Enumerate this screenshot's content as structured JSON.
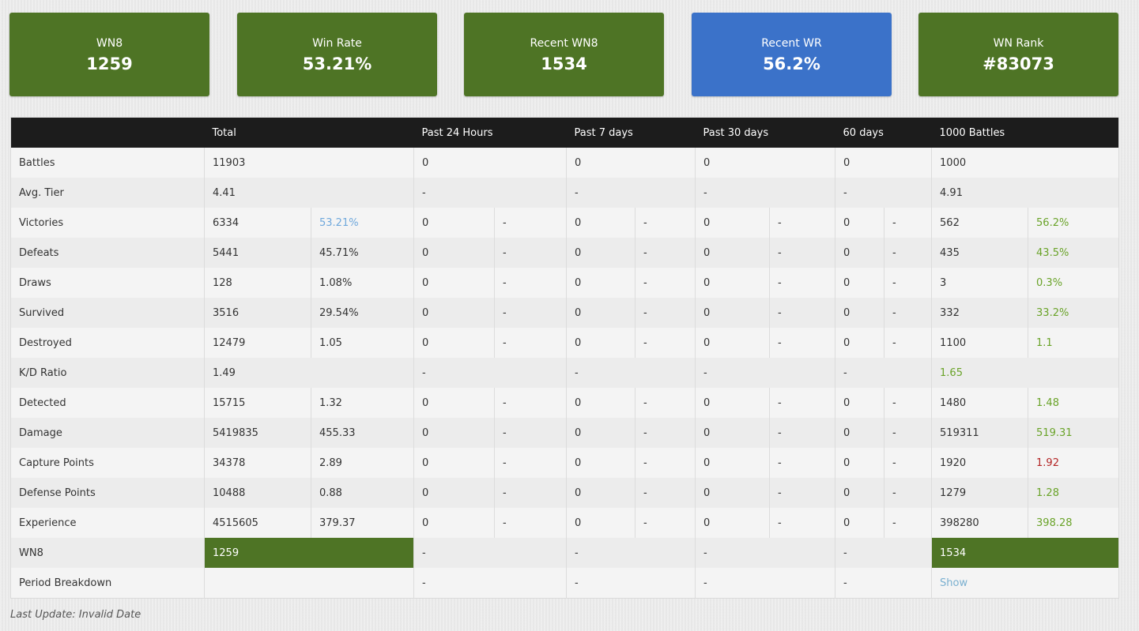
{
  "cards": [
    {
      "label": "WN8",
      "value": "1259",
      "color": "#4e7425"
    },
    {
      "label": "Win Rate",
      "value": "53.21%",
      "color": "#4e7425"
    },
    {
      "label": "Recent WN8",
      "value": "1534",
      "color": "#4e7425"
    },
    {
      "label": "Recent WR",
      "value": "56.2%",
      "color": "#3b72c9"
    },
    {
      "label": "WN Rank",
      "value": "#83073",
      "color": "#4e7425"
    }
  ],
  "table": {
    "headers": [
      "",
      "Total",
      "Past 24 Hours",
      "Past 7 days",
      "Past 30 days",
      "60 days",
      "1000 Battles"
    ],
    "rows": {
      "battles": {
        "label": "Battles",
        "total": "11903",
        "d24": "0",
        "d7": "0",
        "d30": "0",
        "d60": "0",
        "b1000": "1000"
      },
      "avg_tier": {
        "label": "Avg. Tier",
        "total": "4.41",
        "d24": "-",
        "d7": "-",
        "d30": "-",
        "d60": "-",
        "b1000": "4.91"
      },
      "victories": {
        "label": "Victories",
        "total": "6334",
        "total_pct": "53.21%",
        "d24": "0",
        "d24_pct": "-",
        "d7": "0",
        "d7_pct": "-",
        "d30": "0",
        "d30_pct": "-",
        "d60": "0",
        "d60_pct": "-",
        "b1000": "562",
        "b1000_pct": "56.2%"
      },
      "defeats": {
        "label": "Defeats",
        "total": "5441",
        "total_pct": "45.71%",
        "d24": "0",
        "d24_pct": "-",
        "d7": "0",
        "d7_pct": "-",
        "d30": "0",
        "d30_pct": "-",
        "d60": "0",
        "d60_pct": "-",
        "b1000": "435",
        "b1000_pct": "43.5%"
      },
      "draws": {
        "label": "Draws",
        "total": "128",
        "total_pct": "1.08%",
        "d24": "0",
        "d24_pct": "-",
        "d7": "0",
        "d7_pct": "-",
        "d30": "0",
        "d30_pct": "-",
        "d60": "0",
        "d60_pct": "-",
        "b1000": "3",
        "b1000_pct": "0.3%"
      },
      "survived": {
        "label": "Survived",
        "total": "3516",
        "total_pct": "29.54%",
        "d24": "0",
        "d24_pct": "-",
        "d7": "0",
        "d7_pct": "-",
        "d30": "0",
        "d30_pct": "-",
        "d60": "0",
        "d60_pct": "-",
        "b1000": "332",
        "b1000_pct": "33.2%"
      },
      "destroyed": {
        "label": "Destroyed",
        "total": "12479",
        "total_pct": "1.05",
        "d24": "0",
        "d24_pct": "-",
        "d7": "0",
        "d7_pct": "-",
        "d30": "0",
        "d30_pct": "-",
        "d60": "0",
        "d60_pct": "-",
        "b1000": "1100",
        "b1000_pct": "1.1"
      },
      "kd_ratio": {
        "label": "K/D Ratio",
        "total": "1.49",
        "d24": "-",
        "d7": "-",
        "d30": "-",
        "d60": "-",
        "b1000": "1.65"
      },
      "detected": {
        "label": "Detected",
        "total": "15715",
        "total_pct": "1.32",
        "d24": "0",
        "d24_pct": "-",
        "d7": "0",
        "d7_pct": "-",
        "d30": "0",
        "d30_pct": "-",
        "d60": "0",
        "d60_pct": "-",
        "b1000": "1480",
        "b1000_pct": "1.48"
      },
      "damage": {
        "label": "Damage",
        "total": "5419835",
        "total_pct": "455.33",
        "d24": "0",
        "d24_pct": "-",
        "d7": "0",
        "d7_pct": "-",
        "d30": "0",
        "d30_pct": "-",
        "d60": "0",
        "d60_pct": "-",
        "b1000": "519311",
        "b1000_pct": "519.31"
      },
      "capture": {
        "label": "Capture Points",
        "total": "34378",
        "total_pct": "2.89",
        "d24": "0",
        "d24_pct": "-",
        "d7": "0",
        "d7_pct": "-",
        "d30": "0",
        "d30_pct": "-",
        "d60": "0",
        "d60_pct": "-",
        "b1000": "1920",
        "b1000_pct": "1.92"
      },
      "defense": {
        "label": "Defense Points",
        "total": "10488",
        "total_pct": "0.88",
        "d24": "0",
        "d24_pct": "-",
        "d7": "0",
        "d7_pct": "-",
        "d30": "0",
        "d30_pct": "-",
        "d60": "0",
        "d60_pct": "-",
        "b1000": "1279",
        "b1000_pct": "1.28"
      },
      "experience": {
        "label": "Experience",
        "total": "4515605",
        "total_pct": "379.37",
        "d24": "0",
        "d24_pct": "-",
        "d7": "0",
        "d7_pct": "-",
        "d30": "0",
        "d30_pct": "-",
        "d60": "0",
        "d60_pct": "-",
        "b1000": "398280",
        "b1000_pct": "398.28"
      },
      "wn8": {
        "label": "WN8",
        "total": "1259",
        "d24": "-",
        "d7": "-",
        "d30": "-",
        "d60": "-",
        "b1000": "1534"
      },
      "period": {
        "label": "Period Breakdown",
        "total": "",
        "d24": "-",
        "d7": "-",
        "d30": "-",
        "d60": "-",
        "b1000": "Show"
      }
    }
  },
  "colors": {
    "green_good": "#6aa329",
    "red_bad": "#b32424",
    "blue_stat": "#6fa8dc",
    "card_green": "#4e7425",
    "card_blue": "#3b72c9"
  },
  "footer": {
    "last_update": "Last Update: Invalid Date"
  }
}
